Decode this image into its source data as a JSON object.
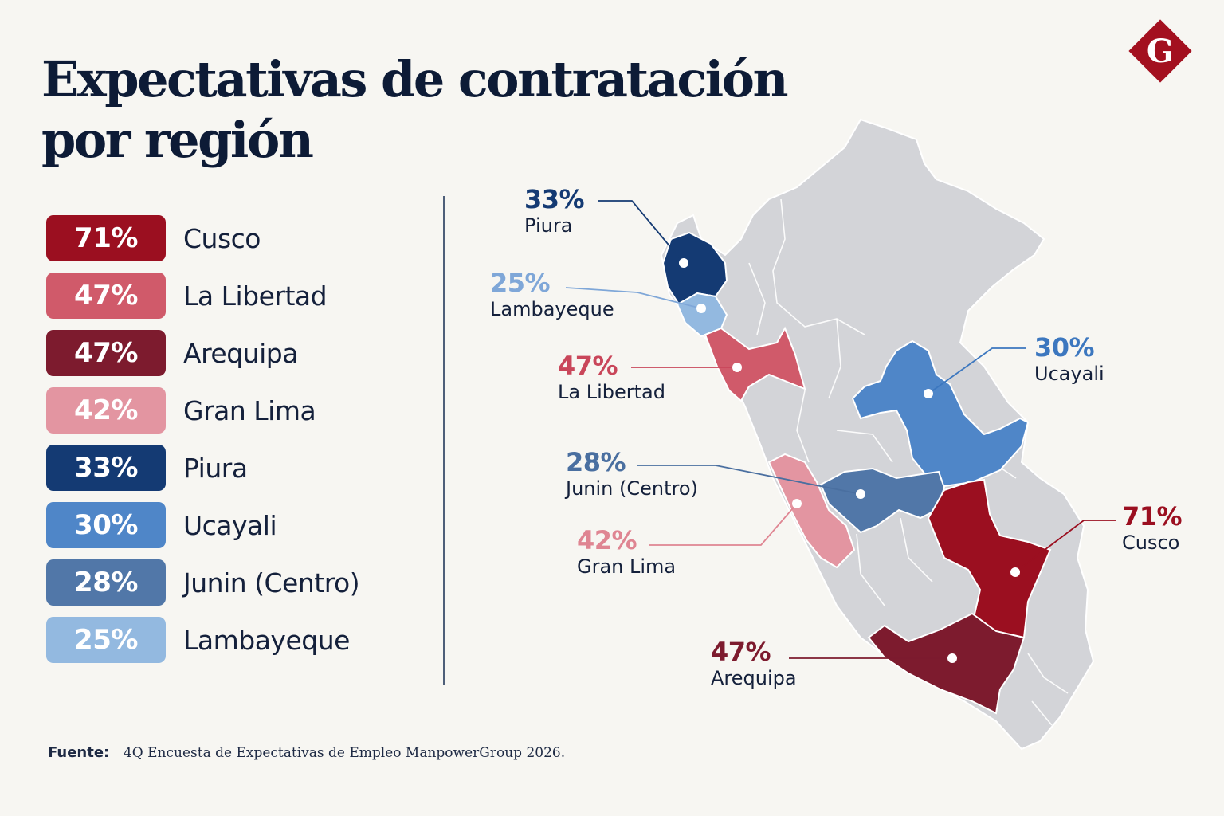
{
  "title_line1": "Expectativas de contratación",
  "title_line2": "por región",
  "logo": {
    "letter": "G",
    "color": "#a3101f"
  },
  "legend": [
    {
      "value": "71%",
      "region": "Cusco",
      "color": "#9b0f20"
    },
    {
      "value": "47%",
      "region": "La Libertad",
      "color": "#d05a6a"
    },
    {
      "value": "47%",
      "region": "Arequipa",
      "color": "#7d1b2e"
    },
    {
      "value": "42%",
      "region": "Gran Lima",
      "color": "#e395a1"
    },
    {
      "value": "33%",
      "region": "Piura",
      "color": "#143a73"
    },
    {
      "value": "30%",
      "region": "Ucayali",
      "color": "#4f86c8"
    },
    {
      "value": "28%",
      "region": "Junin (Centro)",
      "color": "#5177a8"
    },
    {
      "value": "25%",
      "region": "Lambayeque",
      "color": "#93b9e0"
    }
  ],
  "callouts": {
    "piura": {
      "value": "33%",
      "region": "Piura",
      "color": "#143a73"
    },
    "lambayeque": {
      "value": "25%",
      "region": "Lambayeque",
      "color": "#7fa7d8"
    },
    "lalibertad": {
      "value": "47%",
      "region": "La Libertad",
      "color": "#c9465a"
    },
    "junin": {
      "value": "28%",
      "region": "Junin (Centro)",
      "color": "#4a6fa0"
    },
    "granlima": {
      "value": "42%",
      "region": "Gran Lima",
      "color": "#df8592"
    },
    "ucayali": {
      "value": "30%",
      "region": "Ucayali",
      "color": "#3c77bf"
    },
    "cusco": {
      "value": "71%",
      "region": "Cusco",
      "color": "#9b0f20"
    },
    "arequipa": {
      "value": "47%",
      "region": "Arequipa",
      "color": "#7d1b2e"
    }
  },
  "map_base_color": "#d3d4d8",
  "source_label": "Fuente:",
  "source_text": "4Q Encuesta de Expectativas de Empleo ManpowerGroup 2026."
}
